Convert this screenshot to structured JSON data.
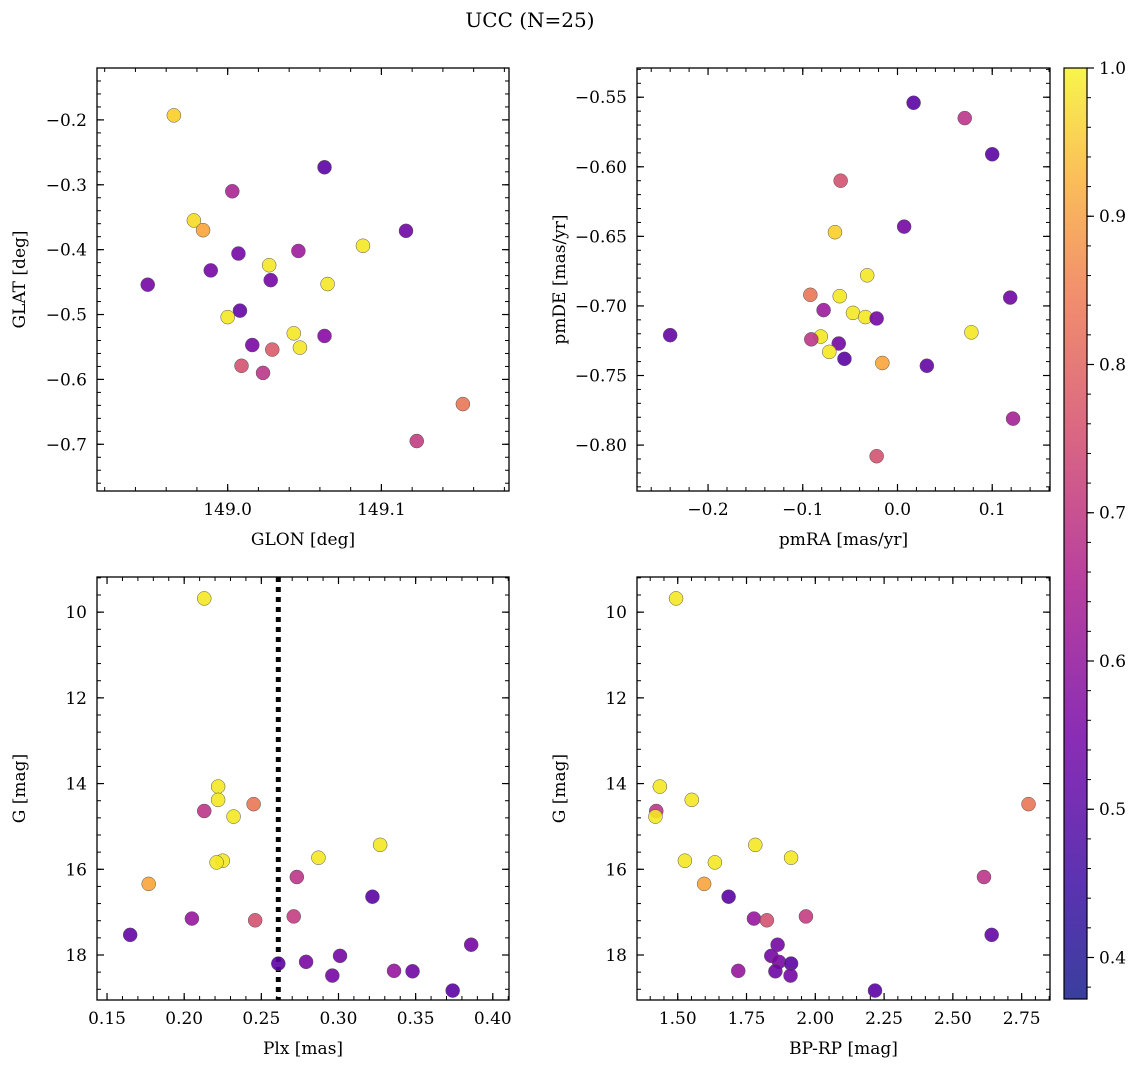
{
  "figure": {
    "title": "UCC (N=25)"
  },
  "colorbar": {
    "range": [
      0.372,
      1.0
    ],
    "ticks": [
      0.4,
      0.5,
      0.6,
      0.7,
      0.8,
      0.9,
      1.0
    ],
    "tick_labels": [
      "0.4",
      "0.5",
      "0.6",
      "0.7",
      "0.8",
      "0.9",
      "1.0"
    ],
    "colormap": "plasma"
  },
  "chart_data": [
    {
      "type": "scatter",
      "xlabel": "GLON [deg]",
      "ylabel": "GLAT [deg]",
      "xlim": [
        148.915,
        149.183
      ],
      "ylim": [
        -0.772,
        -0.12
      ],
      "x_ticks": [
        149.0,
        149.1
      ],
      "x_tick_labels": [
        "149.0",
        "149.1"
      ],
      "y_ticks": [
        -0.2,
        -0.3,
        -0.4,
        -0.5,
        -0.6,
        -0.7
      ],
      "y_tick_labels": [
        "−0.2",
        "−0.3",
        "−0.4",
        "−0.5",
        "−0.6",
        "−0.7"
      ],
      "points": [
        {
          "x": 148.965,
          "y": -0.193,
          "c": 0.93
        },
        {
          "x": 149.063,
          "y": -0.273,
          "c": 0.4
        },
        {
          "x": 149.003,
          "y": -0.31,
          "c": 0.56
        },
        {
          "x": 148.978,
          "y": -0.355,
          "c": 0.95
        },
        {
          "x": 148.984,
          "y": -0.37,
          "c": 0.85
        },
        {
          "x": 149.116,
          "y": -0.371,
          "c": 0.44
        },
        {
          "x": 149.088,
          "y": -0.394,
          "c": 0.97
        },
        {
          "x": 149.046,
          "y": -0.402,
          "c": 0.53
        },
        {
          "x": 149.007,
          "y": -0.406,
          "c": 0.45
        },
        {
          "x": 149.027,
          "y": -0.424,
          "c": 0.97
        },
        {
          "x": 148.989,
          "y": -0.432,
          "c": 0.45
        },
        {
          "x": 149.028,
          "y": -0.447,
          "c": 0.45
        },
        {
          "x": 149.065,
          "y": -0.453,
          "c": 0.97
        },
        {
          "x": 148.948,
          "y": -0.454,
          "c": 0.45
        },
        {
          "x": 149.008,
          "y": -0.494,
          "c": 0.42
        },
        {
          "x": 149.0,
          "y": -0.504,
          "c": 0.97
        },
        {
          "x": 149.043,
          "y": -0.529,
          "c": 0.97
        },
        {
          "x": 149.063,
          "y": -0.533,
          "c": 0.49
        },
        {
          "x": 149.016,
          "y": -0.547,
          "c": 0.46
        },
        {
          "x": 149.047,
          "y": -0.551,
          "c": 0.97
        },
        {
          "x": 149.029,
          "y": -0.554,
          "c": 0.69
        },
        {
          "x": 149.009,
          "y": -0.579,
          "c": 0.67
        },
        {
          "x": 149.023,
          "y": -0.59,
          "c": 0.6
        },
        {
          "x": 149.153,
          "y": -0.638,
          "c": 0.75
        },
        {
          "x": 149.123,
          "y": -0.695,
          "c": 0.62
        }
      ]
    },
    {
      "type": "scatter",
      "xlabel": "pmRA [mas/yr]",
      "ylabel": "pmDE [mas/yr]",
      "xlim": [
        -0.275,
        0.161
      ],
      "ylim": [
        -0.833,
        -0.529
      ],
      "x_ticks": [
        -0.2,
        -0.1,
        0.0,
        0.1
      ],
      "x_tick_labels": [
        "−0.2",
        "−0.1",
        "0.0",
        "0.1"
      ],
      "y_ticks": [
        -0.55,
        -0.6,
        -0.65,
        -0.7,
        -0.75,
        -0.8
      ],
      "y_tick_labels": [
        "−0.55",
        "−0.60",
        "−0.65",
        "−0.70",
        "−0.75",
        "−0.80"
      ],
      "points": [
        {
          "x": 0.017,
          "y": -0.554,
          "c": 0.4
        },
        {
          "x": 0.071,
          "y": -0.565,
          "c": 0.6
        },
        {
          "x": 0.1,
          "y": -0.591,
          "c": 0.4
        },
        {
          "x": -0.06,
          "y": -0.61,
          "c": 0.67
        },
        {
          "x": 0.007,
          "y": -0.643,
          "c": 0.45
        },
        {
          "x": -0.066,
          "y": -0.647,
          "c": 0.93
        },
        {
          "x": -0.032,
          "y": -0.678,
          "c": 0.97
        },
        {
          "x": -0.092,
          "y": -0.692,
          "c": 0.75
        },
        {
          "x": -0.061,
          "y": -0.693,
          "c": 0.97
        },
        {
          "x": 0.119,
          "y": -0.694,
          "c": 0.44
        },
        {
          "x": -0.078,
          "y": -0.703,
          "c": 0.53
        },
        {
          "x": -0.047,
          "y": -0.705,
          "c": 0.97
        },
        {
          "x": -0.034,
          "y": -0.708,
          "c": 0.97
        },
        {
          "x": -0.022,
          "y": -0.709,
          "c": 0.45
        },
        {
          "x": 0.078,
          "y": -0.719,
          "c": 0.97
        },
        {
          "x": -0.24,
          "y": -0.721,
          "c": 0.42
        },
        {
          "x": -0.081,
          "y": -0.722,
          "c": 0.97
        },
        {
          "x": -0.091,
          "y": -0.724,
          "c": 0.6
        },
        {
          "x": -0.062,
          "y": -0.727,
          "c": 0.45
        },
        {
          "x": -0.072,
          "y": -0.733,
          "c": 0.97
        },
        {
          "x": -0.056,
          "y": -0.738,
          "c": 0.4
        },
        {
          "x": -0.016,
          "y": -0.741,
          "c": 0.85
        },
        {
          "x": 0.031,
          "y": -0.743,
          "c": 0.42
        },
        {
          "x": 0.122,
          "y": -0.781,
          "c": 0.55
        },
        {
          "x": -0.022,
          "y": -0.808,
          "c": 0.67
        }
      ]
    },
    {
      "type": "scatter",
      "xlabel": "Plx [mas]",
      "ylabel": "G [mag]",
      "xlim": [
        0.1435,
        0.4105
      ],
      "ylim": [
        19.05,
        9.18
      ],
      "y_inverted": true,
      "x_ticks": [
        0.15,
        0.2,
        0.25,
        0.3,
        0.35,
        0.4
      ],
      "x_tick_labels": [
        "0.15",
        "0.20",
        "0.25",
        "0.30",
        "0.35",
        "0.40"
      ],
      "y_ticks": [
        10,
        12,
        14,
        16,
        18
      ],
      "y_tick_labels": [
        "10",
        "12",
        "14",
        "16",
        "18"
      ],
      "vline": {
        "x": 0.261,
        "style": "dotted",
        "color": "#000000"
      },
      "points": [
        {
          "x": 0.213,
          "y": 9.68,
          "c": 0.97
        },
        {
          "x": 0.222,
          "y": 14.07,
          "c": 0.97
        },
        {
          "x": 0.222,
          "y": 14.38,
          "c": 0.97
        },
        {
          "x": 0.245,
          "y": 14.48,
          "c": 0.75
        },
        {
          "x": 0.213,
          "y": 14.64,
          "c": 0.6
        },
        {
          "x": 0.232,
          "y": 14.77,
          "c": 0.97
        },
        {
          "x": 0.327,
          "y": 15.43,
          "c": 0.97
        },
        {
          "x": 0.287,
          "y": 15.73,
          "c": 0.97
        },
        {
          "x": 0.225,
          "y": 15.8,
          "c": 0.97
        },
        {
          "x": 0.221,
          "y": 15.84,
          "c": 0.97
        },
        {
          "x": 0.273,
          "y": 16.18,
          "c": 0.6
        },
        {
          "x": 0.177,
          "y": 16.34,
          "c": 0.85
        },
        {
          "x": 0.322,
          "y": 16.64,
          "c": 0.4
        },
        {
          "x": 0.271,
          "y": 17.1,
          "c": 0.62
        },
        {
          "x": 0.205,
          "y": 17.15,
          "c": 0.52
        },
        {
          "x": 0.246,
          "y": 17.19,
          "c": 0.67
        },
        {
          "x": 0.165,
          "y": 17.53,
          "c": 0.42
        },
        {
          "x": 0.386,
          "y": 17.76,
          "c": 0.45
        },
        {
          "x": 0.301,
          "y": 18.02,
          "c": 0.45
        },
        {
          "x": 0.279,
          "y": 18.16,
          "c": 0.46
        },
        {
          "x": 0.261,
          "y": 18.2,
          "c": 0.4
        },
        {
          "x": 0.336,
          "y": 18.37,
          "c": 0.52
        },
        {
          "x": 0.348,
          "y": 18.38,
          "c": 0.44
        },
        {
          "x": 0.296,
          "y": 18.48,
          "c": 0.45
        },
        {
          "x": 0.374,
          "y": 18.83,
          "c": 0.4
        }
      ]
    },
    {
      "type": "scatter",
      "xlabel": "BP-RP [mag]",
      "ylabel": "G [mag]",
      "xlim": [
        1.352,
        2.853
      ],
      "ylim": [
        19.05,
        9.18
      ],
      "y_inverted": true,
      "x_ticks": [
        1.5,
        1.75,
        2.0,
        2.25,
        2.5,
        2.75
      ],
      "x_tick_labels": [
        "1.50",
        "1.75",
        "2.00",
        "2.25",
        "2.50",
        "2.75"
      ],
      "y_ticks": [
        10,
        12,
        14,
        16,
        18
      ],
      "y_tick_labels": [
        "10",
        "12",
        "14",
        "16",
        "18"
      ],
      "points": [
        {
          "x": 1.494,
          "y": 9.68,
          "c": 0.97
        },
        {
          "x": 1.435,
          "y": 14.07,
          "c": 0.97
        },
        {
          "x": 2.775,
          "y": 14.48,
          "c": 0.75
        },
        {
          "x": 1.551,
          "y": 14.38,
          "c": 0.97
        },
        {
          "x": 1.422,
          "y": 14.64,
          "c": 0.6
        },
        {
          "x": 1.419,
          "y": 14.77,
          "c": 0.97
        },
        {
          "x": 1.782,
          "y": 15.43,
          "c": 0.97
        },
        {
          "x": 1.912,
          "y": 15.73,
          "c": 0.97
        },
        {
          "x": 1.526,
          "y": 15.8,
          "c": 0.97
        },
        {
          "x": 1.635,
          "y": 15.84,
          "c": 0.97
        },
        {
          "x": 2.613,
          "y": 16.18,
          "c": 0.6
        },
        {
          "x": 1.596,
          "y": 16.34,
          "c": 0.85
        },
        {
          "x": 1.685,
          "y": 16.64,
          "c": 0.4
        },
        {
          "x": 1.966,
          "y": 17.1,
          "c": 0.62
        },
        {
          "x": 1.777,
          "y": 17.15,
          "c": 0.52
        },
        {
          "x": 1.824,
          "y": 17.19,
          "c": 0.67
        },
        {
          "x": 2.641,
          "y": 17.53,
          "c": 0.42
        },
        {
          "x": 1.863,
          "y": 17.76,
          "c": 0.45
        },
        {
          "x": 1.84,
          "y": 18.02,
          "c": 0.45
        },
        {
          "x": 1.868,
          "y": 18.16,
          "c": 0.46
        },
        {
          "x": 1.912,
          "y": 18.2,
          "c": 0.4
        },
        {
          "x": 1.72,
          "y": 18.37,
          "c": 0.52
        },
        {
          "x": 1.855,
          "y": 18.38,
          "c": 0.44
        },
        {
          "x": 1.91,
          "y": 18.48,
          "c": 0.45
        },
        {
          "x": 2.217,
          "y": 18.83,
          "c": 0.4
        }
      ]
    }
  ]
}
